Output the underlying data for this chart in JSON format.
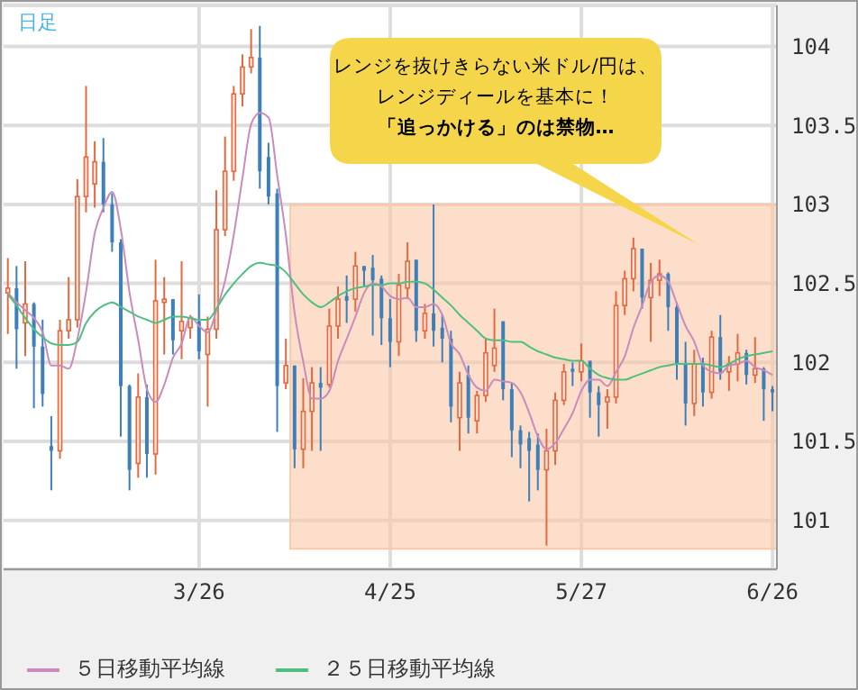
{
  "chart_data": {
    "type": "candlestick",
    "categories": [
      null,
      null,
      null,
      null,
      null,
      null,
      null,
      null,
      null,
      null,
      null,
      null,
      null,
      null,
      null,
      null,
      null,
      null,
      null,
      null,
      null,
      null,
      "3/26",
      null,
      null,
      null,
      null,
      null,
      null,
      null,
      null,
      null,
      null,
      null,
      null,
      null,
      null,
      null,
      null,
      null,
      null,
      null,
      null,
      null,
      "4/25",
      null,
      null,
      null,
      null,
      null,
      null,
      null,
      null,
      null,
      null,
      null,
      null,
      null,
      null,
      null,
      null,
      null,
      null,
      null,
      null,
      null,
      "5/27",
      null,
      null,
      null,
      null,
      null,
      null,
      null,
      null,
      null,
      null,
      null,
      null,
      null,
      null,
      null,
      null,
      null,
      null,
      null,
      null,
      null,
      "6/26"
    ],
    "series": [
      {
        "colors": [
          "#e4683f",
          "#3d7fb8",
          "#e4683f",
          "#3d7fb8",
          "#3d7fb8",
          "#3d7fb8",
          "#e4683f",
          "#e4683f",
          "#e4683f",
          "#e4683f",
          "#e4683f",
          "#3d7fb8",
          "#3d7fb8",
          "#3d7fb8",
          "#3d7fb8",
          "#e4683f",
          "#3d7fb8",
          "#e4683f",
          "#e4683f",
          "#3d7fb8",
          "#e4683f",
          "#e4683f",
          "#3d7fb8",
          "#e4683f",
          "#e4683f",
          "#e4683f",
          "#e4683f",
          "#e4683f",
          "#e4683f",
          "#3d7fb8",
          "#3d7fb8",
          "#3d7fb8",
          "#e4683f",
          "#3d7fb8",
          "#e4683f",
          "#e4683f",
          "#3d7fb8",
          "#e4683f",
          "#e4683f",
          "#3d7fb8",
          "#e4683f",
          "#3d7fb8",
          "#3d7fb8",
          "#3d7fb8",
          "#3d7fb8",
          "#e4683f",
          "#e4683f",
          "#3d7fb8",
          "#e4683f",
          "#3d7fb8",
          "#3d7fb8",
          "#3d7fb8",
          "#e4683f",
          "#3d7fb8",
          "#e4683f",
          "#e4683f",
          "#e4683f",
          "#3d7fb8",
          "#3d7fb8",
          "#3d7fb8",
          "#3d7fb8",
          "#3d7fb8",
          "#e4683f",
          "#e4683f",
          "#e4683f",
          "#3d7fb8",
          "#e4683f",
          "#3d7fb8",
          "#3d7fb8",
          "#e4683f",
          "#e4683f",
          "#e4683f",
          "#e4683f",
          "#3d7fb8",
          "#e4683f",
          "#e4683f",
          "#3d7fb8",
          "#3d7fb8",
          "#3d7fb8",
          "#e4683f",
          "#3d7fb8",
          "#e4683f",
          "#3d7fb8",
          "#e4683f",
          "#e4683f",
          "#3d7fb8",
          "#e4683f",
          "#3d7fb8",
          "#3d7fb8"
        ],
        "ohlc": [
          [
            102.44,
            102.66,
            102.18,
            102.47
          ],
          [
            102.47,
            102.61,
            101.96,
            102.21
          ],
          [
            102.25,
            102.64,
            102.04,
            102.37
          ],
          [
            102.37,
            102.38,
            101.71,
            102.1
          ],
          [
            102.1,
            102.27,
            101.72,
            101.8
          ],
          [
            101.47,
            101.66,
            101.19,
            101.44
          ],
          [
            101.44,
            102.27,
            101.39,
            102.2
          ],
          [
            102.2,
            102.54,
            102.15,
            102.27
          ],
          [
            102.27,
            103.16,
            102.22,
            103.05
          ],
          [
            103.05,
            103.75,
            102.95,
            103.3
          ],
          [
            103.13,
            103.4,
            102.98,
            103.27
          ],
          [
            103.27,
            103.42,
            102.95,
            103
          ],
          [
            103,
            103.07,
            102.7,
            102.76
          ],
          [
            102.76,
            102.78,
            101.53,
            101.85
          ],
          [
            101.85,
            101.86,
            101.19,
            101.32
          ],
          [
            101.36,
            101.93,
            101.27,
            101.78
          ],
          [
            101.78,
            101.86,
            101.27,
            101.42
          ],
          [
            101.42,
            102.65,
            101.29,
            102.39
          ],
          [
            102.38,
            102.54,
            102.05,
            102.4
          ],
          [
            102.4,
            102.4,
            102.05,
            102.14
          ],
          [
            102.2,
            102.64,
            102.02,
            102.26
          ],
          [
            102.22,
            102.3,
            102.15,
            102.28
          ],
          [
            102.26,
            102.43,
            102.02,
            102.07
          ],
          [
            102.05,
            102.29,
            101.72,
            102.21
          ],
          [
            102.21,
            103.09,
            102.15,
            102.84
          ],
          [
            102.84,
            103.43,
            102.8,
            103.21
          ],
          [
            103.21,
            103.75,
            103.15,
            103.7
          ],
          [
            103.7,
            103.95,
            103.62,
            103.87
          ],
          [
            103.87,
            104.11,
            103.83,
            103.93
          ],
          [
            103.93,
            104.13,
            103.1,
            103.21
          ],
          [
            103.3,
            103.39,
            103,
            103.05
          ],
          [
            103.07,
            103.1,
            101.56,
            101.85
          ],
          [
            101.87,
            102.15,
            101.83,
            101.98
          ],
          [
            101.98,
            101.98,
            101.33,
            101.45
          ],
          [
            101.45,
            101.9,
            101.33,
            101.69
          ],
          [
            101.69,
            101.97,
            101.44,
            101.87
          ],
          [
            101.87,
            101.97,
            101.44,
            101.84
          ],
          [
            101.86,
            102.34,
            101.84,
            102.23
          ],
          [
            102.23,
            102.48,
            102.15,
            102.4
          ],
          [
            102.42,
            102.55,
            102.25,
            102.39
          ],
          [
            102.4,
            102.7,
            102.32,
            102.61
          ],
          [
            102.61,
            102.61,
            102.48,
            102.58
          ],
          [
            102.6,
            102.68,
            102.17,
            102.52
          ],
          [
            102.53,
            102.55,
            102.11,
            102.28
          ],
          [
            102.28,
            102.4,
            101.97,
            102.13
          ],
          [
            102.13,
            102.56,
            102.04,
            102.49
          ],
          [
            102.47,
            102.76,
            102.4,
            102.64
          ],
          [
            102.65,
            102.65,
            102.13,
            102.2
          ],
          [
            102.2,
            102.37,
            102.15,
            102.31
          ],
          [
            102.31,
            103,
            102.1,
            102.2
          ],
          [
            102.22,
            102.3,
            102,
            102.15
          ],
          [
            102.15,
            102.2,
            101.62,
            101.72
          ],
          [
            101.65,
            101.94,
            101.44,
            101.87
          ],
          [
            101.92,
            101.98,
            101.55,
            101.65
          ],
          [
            101.63,
            101.82,
            101.55,
            101.79
          ],
          [
            101.79,
            102.15,
            101.75,
            102.06
          ],
          [
            101.98,
            102.34,
            101.94,
            102.09
          ],
          [
            102.26,
            102.26,
            101.76,
            101.83
          ],
          [
            101.83,
            101.87,
            101.4,
            101.57
          ],
          [
            101.57,
            101.6,
            101.33,
            101.48
          ],
          [
            101.52,
            101.56,
            101.12,
            101.44
          ],
          [
            101.48,
            101.55,
            101.19,
            101.32
          ],
          [
            101.32,
            101.58,
            100.84,
            101.44
          ],
          [
            101.44,
            101.81,
            101.35,
            101.76
          ],
          [
            101.76,
            101.99,
            101.73,
            101.94
          ],
          [
            101.96,
            102,
            101.85,
            101.94
          ],
          [
            101.94,
            102.12,
            101.88,
            102.01
          ],
          [
            102.01,
            102.01,
            101.65,
            101.81
          ],
          [
            101.81,
            101.85,
            101.53,
            101.73
          ],
          [
            101.75,
            101.83,
            101.58,
            101.78
          ],
          [
            101.78,
            102.45,
            101.74,
            102.36
          ],
          [
            102.36,
            102.58,
            102.3,
            102.53
          ],
          [
            102.53,
            102.79,
            102.45,
            102.72
          ],
          [
            102.72,
            102.72,
            102.34,
            102.41
          ],
          [
            102.41,
            102.63,
            102.13,
            102.52
          ],
          [
            102.52,
            102.65,
            102.42,
            102.56
          ],
          [
            102.56,
            102.57,
            102.2,
            102.35
          ],
          [
            102.35,
            102.38,
            101.89,
            101.99
          ],
          [
            101.99,
            102.13,
            101.6,
            101.74
          ],
          [
            101.74,
            102.08,
            101.66,
            101.99
          ],
          [
            101.99,
            102.03,
            101.72,
            101.81
          ],
          [
            101.81,
            102.2,
            101.77,
            102.16
          ],
          [
            102.16,
            102.3,
            101.89,
            101.94
          ],
          [
            101.94,
            102.04,
            101.82,
            101.99
          ],
          [
            101.99,
            102.18,
            101.88,
            102.06
          ],
          [
            102.06,
            102.08,
            101.86,
            101.92
          ],
          [
            101.92,
            102.16,
            101.87,
            101.96
          ],
          [
            101.96,
            101.97,
            101.63,
            101.83
          ],
          [
            101.83,
            101.85,
            101.69,
            101.81
          ]
        ]
      },
      {
        "type": "line",
        "name": "５日移動平均線",
        "color": "#c98bbd",
        "values": [
          102.44,
          102.38,
          102.33,
          102.28,
          102.19,
          101.98,
          101.98,
          101.96,
          102.15,
          102.45,
          102.82,
          102.98,
          103.08,
          102.84,
          102.44,
          102.14,
          101.83,
          101.75,
          101.86,
          102.03,
          102.12,
          102.29,
          102.23,
          102.19,
          102.33,
          102.52,
          102.81,
          103.17,
          103.51,
          103.58,
          103.55,
          103.18,
          102.8,
          102.31,
          102,
          101.77,
          101.77,
          101.82,
          102.01,
          102.15,
          102.29,
          102.44,
          102.5,
          102.48,
          102.42,
          102.4,
          102.41,
          102.35,
          102.35,
          102.37,
          102.3,
          102.12,
          102.05,
          101.92,
          101.84,
          101.82,
          101.89,
          101.88,
          101.87,
          101.81,
          101.68,
          101.53,
          101.45,
          101.49,
          101.58,
          101.68,
          101.82,
          101.89,
          101.89,
          101.85,
          101.94,
          102.04,
          102.22,
          102.36,
          102.51,
          102.55,
          102.51,
          102.37,
          102.23,
          102.13,
          101.98,
          101.94,
          101.93,
          101.98,
          101.99,
          102.01,
          101.97,
          101.95,
          101.92
        ]
      },
      {
        "type": "line",
        "name": "２５日移動平均線",
        "color": "#4fbf80",
        "values": [
          102.43,
          102.36,
          102.28,
          102.21,
          102.16,
          102.12,
          102.11,
          102.11,
          102.13,
          102.25,
          102.32,
          102.36,
          102.38,
          102.35,
          102.32,
          102.29,
          102.27,
          102.25,
          102.27,
          102.29,
          102.29,
          102.28,
          102.27,
          102.27,
          102.34,
          102.43,
          102.5,
          102.56,
          102.61,
          102.63,
          102.62,
          102.61,
          102.57,
          102.5,
          102.43,
          102.38,
          102.35,
          102.38,
          102.42,
          102.45,
          102.47,
          102.48,
          102.49,
          102.49,
          102.5,
          102.5,
          102.51,
          102.51,
          102.5,
          102.46,
          102.41,
          102.36,
          102.3,
          102.25,
          102.2,
          102.15,
          102.14,
          102.14,
          102.13,
          102.13,
          102.1,
          102.07,
          102.05,
          102.03,
          102.02,
          102.01,
          102.01,
          101.96,
          101.92,
          101.9,
          101.89,
          101.89,
          101.91,
          101.93,
          101.95,
          101.97,
          101.98,
          101.99,
          101.99,
          101.99,
          101.99,
          101.98,
          101.97,
          101.99,
          102.02,
          102.04,
          102.05,
          102.06,
          102.07
        ]
      }
    ],
    "ylim": [
      100.69,
      104.26
    ],
    "yticks": [
      101,
      101.5,
      102,
      102.5,
      103,
      103.5,
      104
    ],
    "grid": true,
    "legend": "bottom left",
    "bands": [
      {
        "axis": "y",
        "from": 100.82,
        "to": 103,
        "color": "#fbc8a6"
      }
    ],
    "annotations": [
      "日足",
      "レンジを抜けきらない米ドル/円は、レンジディールを基本に！",
      "「追っかける」のは禁物…"
    ]
  }
}
